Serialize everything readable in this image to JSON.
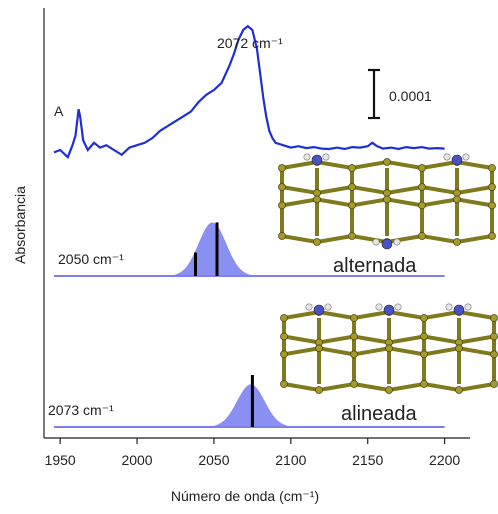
{
  "chart_data": {
    "type": "line",
    "xlabel": "Número de onda (cm⁻¹)",
    "ylabel": "Absorbancia",
    "xlim": [
      1946,
      2210
    ],
    "xticks": [
      1950,
      2000,
      2050,
      2100,
      2150,
      2200
    ],
    "xtick_labels": [
      "1950",
      "2000",
      "2050",
      "2100",
      "2150",
      "2200"
    ],
    "grid": false,
    "scale_bar": {
      "label": "0.0001",
      "value": 0.0001
    },
    "panels": [
      {
        "id": "experimental",
        "series_label": "A",
        "peak_label": "2072 cm⁻¹",
        "color": "#1f2fd6",
        "baseline": 0,
        "x": [
          1946,
          1950,
          1955,
          1958,
          1960,
          1962,
          1963,
          1965,
          1968,
          1972,
          1976,
          1980,
          1985,
          1990,
          1995,
          2000,
          2005,
          2010,
          2015,
          2020,
          2025,
          2030,
          2035,
          2040,
          2045,
          2050,
          2055,
          2060,
          2063,
          2066,
          2069,
          2072,
          2075,
          2078,
          2080,
          2082,
          2084,
          2086,
          2088,
          2090,
          2095,
          2100,
          2105,
          2110,
          2115,
          2120,
          2125,
          2130,
          2135,
          2140,
          2145,
          2150,
          2153,
          2156,
          2160,
          2165,
          2170,
          2175,
          2180,
          2185,
          2190,
          2195,
          2200
        ],
        "y": [
          -5e-06,
          0.0,
          -1.5e-05,
          1e-05,
          3e-05,
          8.5e-05,
          7e-05,
          2e-05,
          0.0,
          1.5e-05,
          5e-06,
          1e-05,
          0.0,
          -1e-05,
          5e-06,
          1e-05,
          1.5e-05,
          2.5e-05,
          4e-05,
          5e-05,
          6e-05,
          7e-05,
          8e-05,
          0.0001,
          0.000115,
          0.000125,
          0.00014,
          0.000175,
          0.0002,
          0.00023,
          0.00025,
          0.000258,
          0.00025,
          0.00021,
          0.00016,
          0.00011,
          7e-05,
          4e-05,
          2.5e-05,
          1.5e-05,
          1e-05,
          5e-06,
          8e-06,
          4e-06,
          6e-06,
          3e-06,
          2e-06,
          5e-06,
          2e-06,
          6e-06,
          5e-06,
          8e-06,
          1.5e-05,
          8e-06,
          3e-06,
          5e-06,
          2e-06,
          6e-06,
          4e-06,
          6e-06,
          3e-06,
          4e-06,
          3e-06
        ]
      },
      {
        "id": "alternada",
        "series_label": "alternada",
        "peak_label": "2050 cm⁻¹",
        "fill_color": "#8a8ff2",
        "peak_center": 2049,
        "peak_width": 9,
        "peak_height": 0.8,
        "sticks": [
          {
            "x": 2038,
            "intensity": 0.35
          },
          {
            "x": 2052,
            "intensity": 0.8
          }
        ]
      },
      {
        "id": "alineada",
        "series_label": "alineada",
        "peak_label": "2073 cm⁻¹",
        "fill_color": "#8a8ff2",
        "peak_center": 2074,
        "peak_width": 9,
        "peak_height": 0.82,
        "sticks": [
          {
            "x": 2075,
            "intensity": 1.0
          }
        ]
      }
    ]
  },
  "colors": {
    "axis": "#222222",
    "surface_gold": "#7f7a1d",
    "atom_gold": "#a59b2c",
    "nitrogen": "#4a53c4",
    "hydrogen": "#e6e6e6"
  }
}
